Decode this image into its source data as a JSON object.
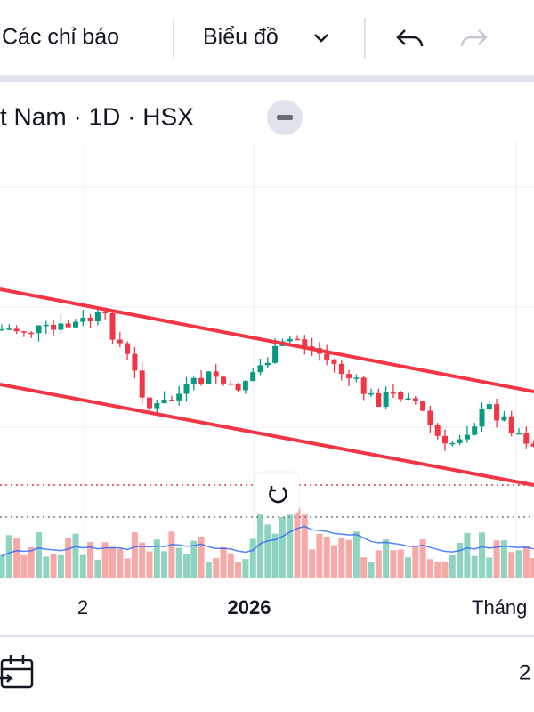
{
  "toolbar": {
    "indicators": "Các chỉ báo",
    "chart_type": "Biểu đồ"
  },
  "symbol": {
    "label": "t Nam · 1D · HSX"
  },
  "time_axis": {
    "labels": [
      "2",
      "2026",
      "Tháng"
    ]
  },
  "footer": {
    "label": "2"
  }
}
